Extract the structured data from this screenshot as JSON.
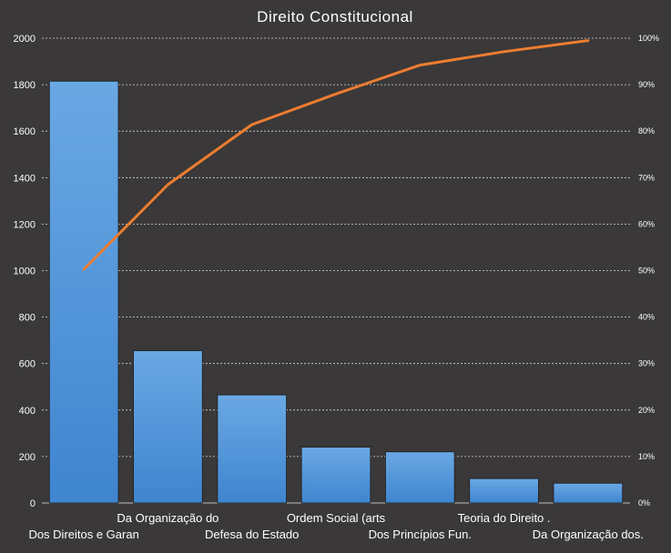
{
  "chart_data": {
    "type": "bar",
    "title": "Direito Constitucional",
    "categories": [
      "Dos Direitos e Garan",
      "Da Organização do",
      "Defesa do Estado",
      "Ordem Social (arts",
      "Dos Princípios Fun.",
      "Teoria do Direito .",
      "Da Organização dos."
    ],
    "series": [
      {
        "type": "bar",
        "values": [
          1815,
          655,
          465,
          240,
          220,
          105,
          85
        ],
        "color": "#4f95db"
      },
      {
        "type": "line",
        "axis": "right",
        "values": [
          50.3,
          68.5,
          81.4,
          88.0,
          94.2,
          97.1,
          99.5
        ],
        "color": "#ed7d31"
      }
    ],
    "y_left": {
      "min": 0,
      "max": 2000,
      "step": 200,
      "ticks": [
        "0",
        "200",
        "400",
        "600",
        "800",
        "1000",
        "1200",
        "1400",
        "1600",
        "1800",
        "2000"
      ]
    },
    "y_right": {
      "min": 0,
      "max": 100,
      "step": 10,
      "ticks": [
        "0%",
        "10%",
        "20%",
        "30%",
        "40%",
        "50%",
        "60%",
        "70%",
        "80%",
        "90%",
        "100%"
      ]
    },
    "grid": true,
    "legend": "none"
  }
}
